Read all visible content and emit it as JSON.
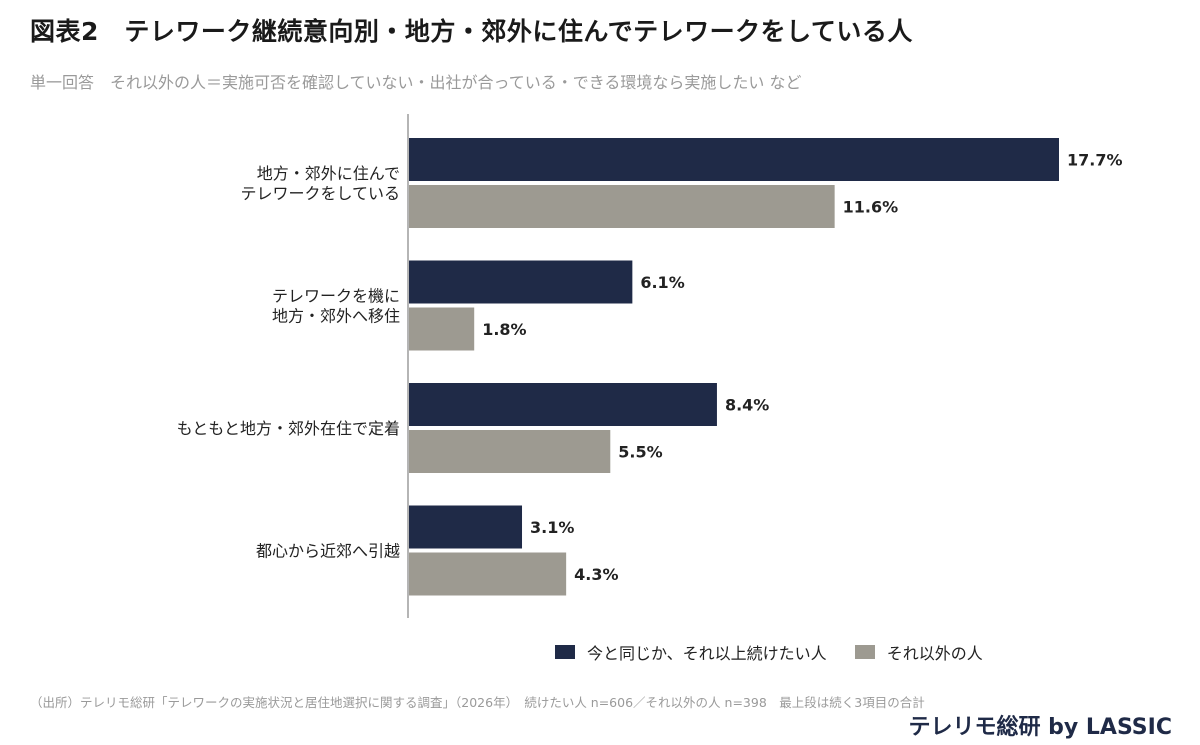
{
  "header": {
    "title": "図表2　テレワーク継続意向別・地方・郊外に住んでテレワークをしている人",
    "subtitle": "単一回答　それ以外の人＝実施可否を確認していない・出社が合っている・できる環境なら実施したい など"
  },
  "colors": {
    "series_1": "#1f2a47",
    "series_2": "#9d9a91",
    "axis": "#b5b5b5"
  },
  "chart_data": {
    "type": "bar",
    "orientation": "horizontal",
    "categories": [
      [
        "地方・郊外に住んで",
        "テレワークをしている"
      ],
      [
        "テレワークを機に",
        "地方・郊外へ移住"
      ],
      [
        "もともと地方・郊外在住で定着"
      ],
      [
        "都心から近郊へ引越"
      ]
    ],
    "series": [
      {
        "name": "今と同じか、それ以上続けたい人",
        "values": [
          17.7,
          6.1,
          8.4,
          3.1
        ],
        "labels": [
          "17.7%",
          "6.1%",
          "8.4%",
          "3.1%"
        ]
      },
      {
        "name": "それ以外の人",
        "values": [
          11.6,
          1.8,
          5.5,
          4.3
        ],
        "labels": [
          "11.6%",
          "1.8%",
          "5.5%",
          "4.3%"
        ]
      }
    ],
    "unit": "%",
    "grid": false,
    "legend_position": "bottom-right"
  },
  "legend": {
    "items": [
      "今と同じか、それ以上続けたい人",
      "それ以外の人"
    ]
  },
  "footer": {
    "source": "（出所）テレリモ総研「テレワークの実施状況と居住地選択に関する調査」（2026年）　続けたい人 n=606／それ以外の人 n=398　最上段は続く3項目の合計",
    "brand": "テレリモ総研 by LASSIC"
  }
}
